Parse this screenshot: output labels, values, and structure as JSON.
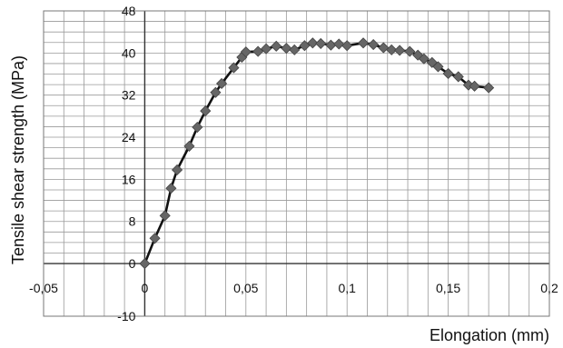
{
  "chart_data": {
    "type": "line",
    "title": "",
    "xlabel": "Elongation (mm)",
    "ylabel": "Tensile shear strength (MPa)",
    "xlim": [
      -0.05,
      0.2
    ],
    "ylim": [
      -10,
      48
    ],
    "grid": true,
    "legend": "none",
    "x_ticks": [
      -0.05,
      0,
      0.05,
      0.1,
      0.15,
      0.2
    ],
    "x_tick_labels": [
      "-0,05",
      "0",
      "0,05",
      "0,1",
      "0,15",
      "0,2"
    ],
    "y_ticks": [
      -10,
      0,
      8,
      16,
      24,
      32,
      40,
      48
    ],
    "y_tick_labels": [
      "-10",
      "0",
      "8",
      "16",
      "24",
      "32",
      "40",
      "48"
    ],
    "colors": {
      "line": "#111111",
      "marker": "#666666",
      "grid": "#999999"
    },
    "series": [
      {
        "marker": "diamond",
        "x": [
          0,
          0.005,
          0.01,
          0.013,
          0.016,
          0.022,
          0.026,
          0.03,
          0.035,
          0.038,
          0.044,
          0.048,
          0.05,
          0.056,
          0.06,
          0.065,
          0.07,
          0.074,
          0.079,
          0.083,
          0.087,
          0.092,
          0.096,
          0.1,
          0.108,
          0.113,
          0.118,
          0.122,
          0.126,
          0.131,
          0.135,
          0.138,
          0.142,
          0.145,
          0.15,
          0.155,
          0.16,
          0.163,
          0.17
        ],
        "y": [
          0,
          4.8,
          9.1,
          14.3,
          17.8,
          22.3,
          25.9,
          29,
          32.5,
          34.2,
          37.2,
          39.2,
          40.2,
          40.3,
          40.8,
          41.3,
          40.9,
          40.6,
          41.4,
          41.9,
          41.8,
          41.5,
          41.7,
          41.4,
          41.9,
          41.6,
          41,
          40.6,
          40.5,
          40.3,
          39.6,
          38.9,
          38.2,
          37.4,
          36.1,
          35.5,
          33.9,
          33.7,
          33.4
        ]
      }
    ]
  }
}
